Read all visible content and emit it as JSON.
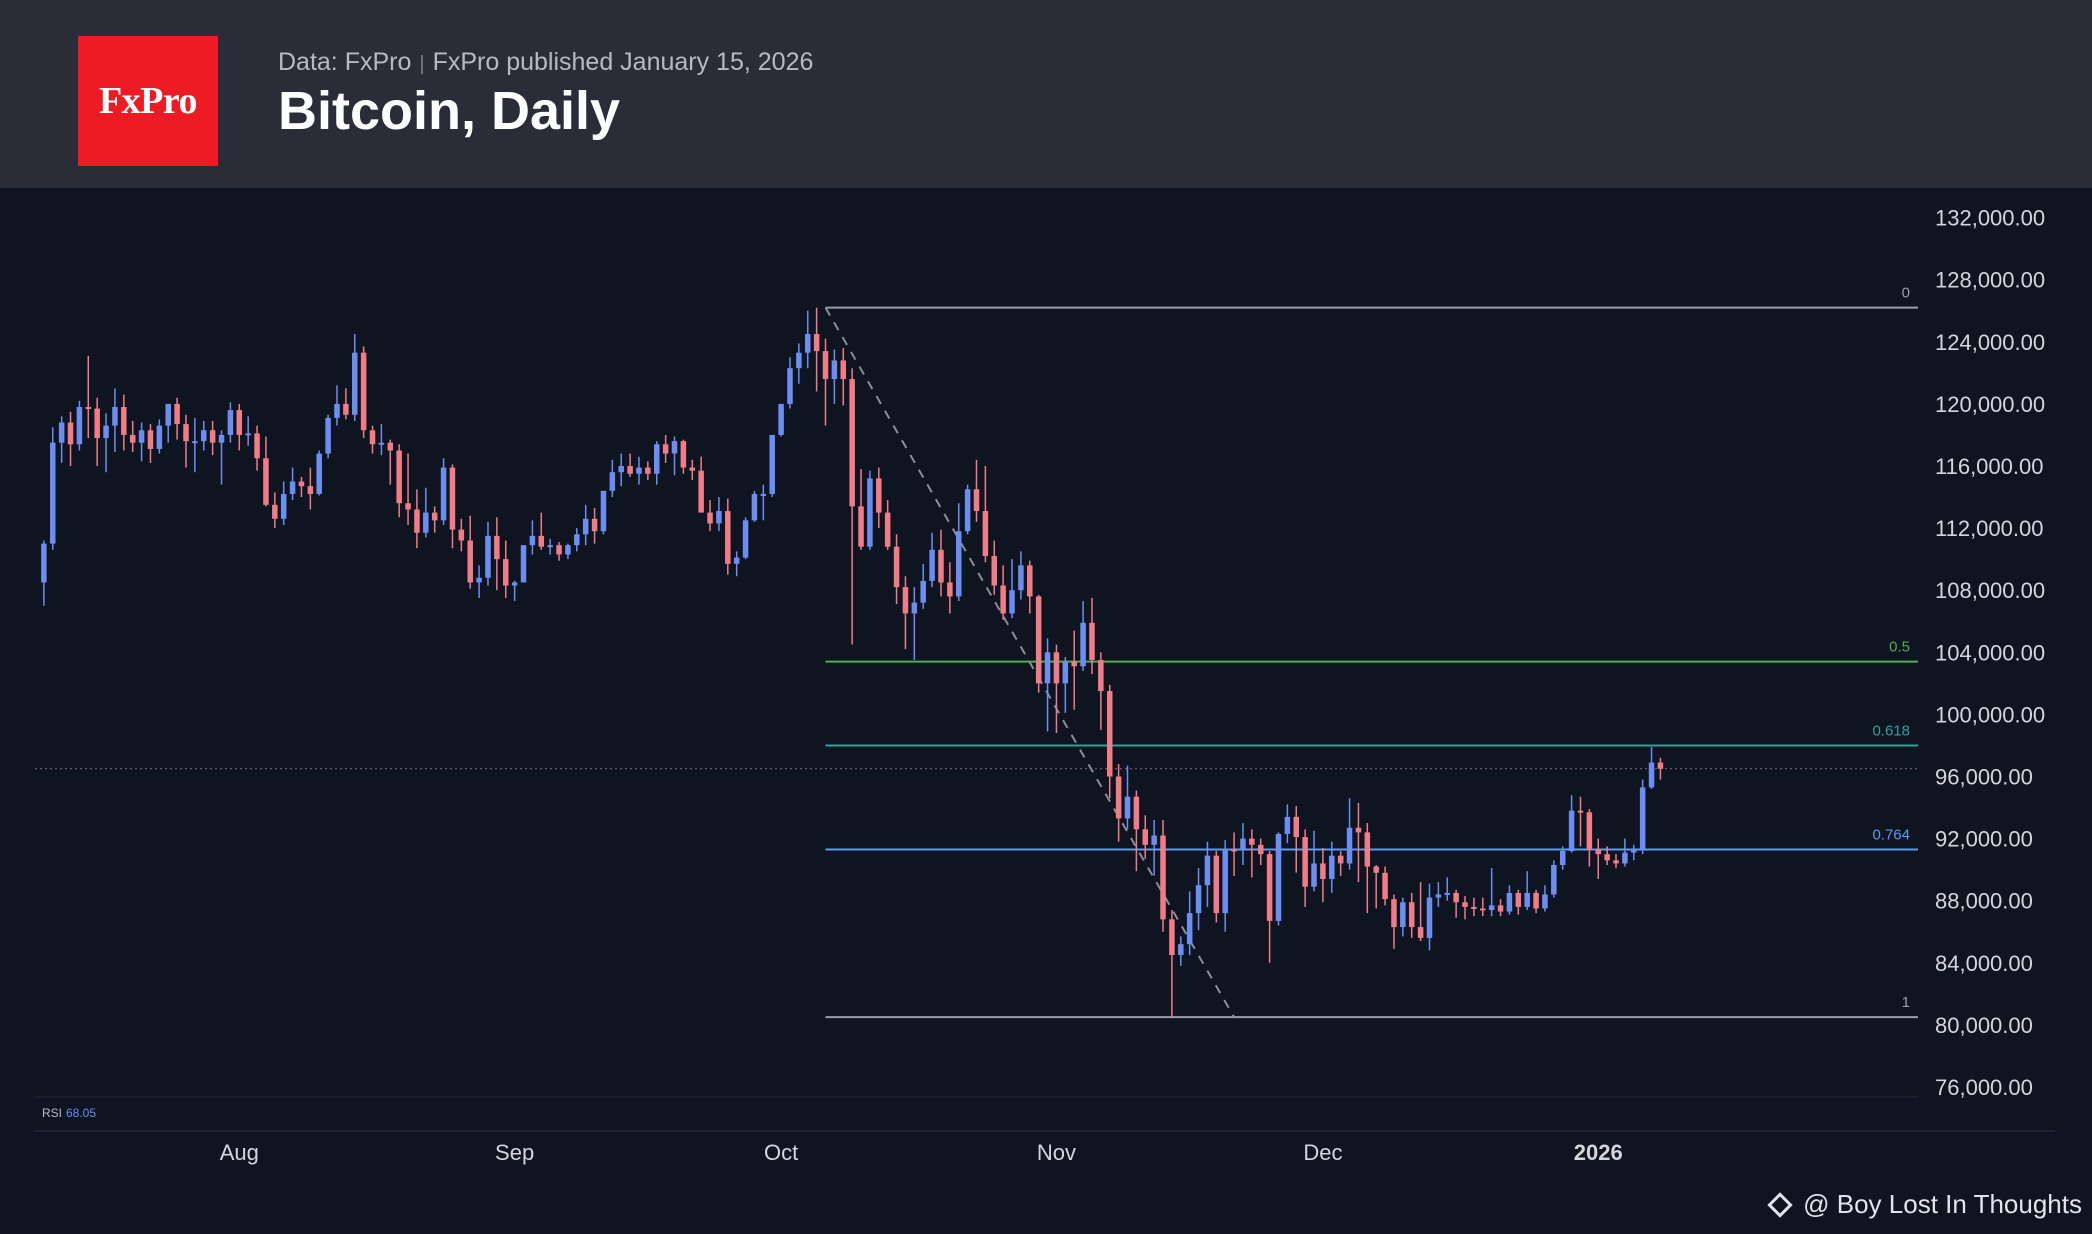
{
  "header": {
    "logo_text": "FxPro",
    "data_source": "Data: FxPro",
    "separator": "|",
    "published": "FxPro published January 15, 2026",
    "title": "Bitcoin, Daily"
  },
  "colors": {
    "background": "#0f1421",
    "header_bg": "#2a2d37",
    "logo_red": "#ee1b24",
    "up_candle": "#6b8ef0",
    "down_candle": "#f07c85",
    "fib_0": "#9a9ea8",
    "fib_0_5": "#4caf50",
    "fib_0_618": "#26a69a",
    "fib_0_764": "#5b9cf0",
    "fib_1": "#9a9ea8"
  },
  "watermark": {
    "icon": "binance-diamond-icon",
    "text": "@ Boy Lost In Thoughts"
  },
  "chart_data": {
    "type": "candlestick",
    "title": "Bitcoin, Daily",
    "y_ticks": [
      "132,000.00",
      "128,000.00",
      "124,000.00",
      "120,000.00",
      "116,000.00",
      "112,000.00",
      "108,000.00",
      "104,000.00",
      "100,000.00",
      "96,000.00",
      "92,000.00",
      "88,000.00",
      "84,000.00",
      "80,000.00",
      "76,000.00"
    ],
    "ylim": [
      76000,
      132000
    ],
    "x_ticks": [
      {
        "label": "Aug",
        "date": "2025-08-01"
      },
      {
        "label": "Sep",
        "date": "2025-09-01"
      },
      {
        "label": "Oct",
        "date": "2025-10-01"
      },
      {
        "label": "Nov",
        "date": "2025-11-01"
      },
      {
        "label": "Dec",
        "date": "2025-12-01"
      },
      {
        "label": "2026",
        "date": "2026-01-01",
        "bold": true
      }
    ],
    "xlim": [
      "2025-07-09",
      "2026-02-06"
    ],
    "grid": false,
    "current_price_line": 96500,
    "fib_retracement": {
      "start_date": "2025-10-06",
      "end_date": "2026-02-06",
      "levels": [
        {
          "label": "0",
          "value": 126200
        },
        {
          "label": "0.5",
          "value": 103400
        },
        {
          "label": "0.618",
          "value": 98000
        },
        {
          "label": "0.764",
          "value": 91300
        },
        {
          "label": "1",
          "value": 80500
        }
      ],
      "trend_line": [
        {
          "date": "2025-10-06",
          "value": 126200
        },
        {
          "date": "2025-11-21",
          "value": 80500
        }
      ]
    },
    "rsi": {
      "label": "RSI",
      "value": "68.05"
    },
    "candles_start_date": "2025-07-10",
    "candles_ohlc": [
      [
        108500,
        111200,
        107000,
        111000
      ],
      [
        111000,
        118500,
        110600,
        117500
      ],
      [
        117500,
        119200,
        116200,
        118800
      ],
      [
        118800,
        119500,
        116000,
        117400
      ],
      [
        117400,
        120200,
        117000,
        119800
      ],
      [
        119800,
        123100,
        117800,
        119700
      ],
      [
        119700,
        120400,
        116000,
        117800
      ],
      [
        117800,
        119400,
        115600,
        118600
      ],
      [
        118600,
        121000,
        116900,
        119800
      ],
      [
        119800,
        120600,
        117000,
        118000
      ],
      [
        118000,
        118900,
        116900,
        117500
      ],
      [
        117500,
        118800,
        116300,
        118300
      ],
      [
        118300,
        118700,
        116200,
        117100
      ],
      [
        117100,
        119000,
        116800,
        118600
      ],
      [
        118600,
        120000,
        117500,
        120000
      ],
      [
        120000,
        120400,
        117700,
        118700
      ],
      [
        118700,
        119300,
        115900,
        117600
      ],
      [
        117600,
        119100,
        115600,
        117600
      ],
      [
        117600,
        118900,
        117000,
        118300
      ],
      [
        118300,
        118900,
        116700,
        117500
      ],
      [
        117500,
        118300,
        114800,
        118000
      ],
      [
        118000,
        120100,
        117500,
        119600
      ],
      [
        119600,
        120000,
        117000,
        118000
      ],
      [
        118000,
        119200,
        117300,
        118100
      ],
      [
        118100,
        118600,
        115700,
        116500
      ],
      [
        116500,
        117900,
        113400,
        113500
      ],
      [
        113500,
        114300,
        112000,
        112600
      ],
      [
        112600,
        115000,
        112200,
        114200
      ],
      [
        114200,
        115900,
        113800,
        115000
      ],
      [
        115000,
        115300,
        114000,
        114700
      ],
      [
        114700,
        115900,
        113200,
        114200
      ],
      [
        114200,
        117000,
        114100,
        116800
      ],
      [
        116800,
        119300,
        116500,
        119100
      ],
      [
        119100,
        121200,
        118600,
        120000
      ],
      [
        120000,
        121000,
        119000,
        119300
      ],
      [
        119300,
        124500,
        118900,
        123300
      ],
      [
        123300,
        123700,
        117800,
        118300
      ],
      [
        118300,
        118600,
        116800,
        117400
      ],
      [
        117400,
        118700,
        116700,
        117500
      ],
      [
        117500,
        117700,
        114800,
        117000
      ],
      [
        117000,
        117400,
        112700,
        113600
      ],
      [
        113600,
        116800,
        112200,
        113200
      ],
      [
        113200,
        114500,
        110700,
        111700
      ],
      [
        111700,
        114600,
        111400,
        113000
      ],
      [
        113000,
        113400,
        111700,
        112500
      ],
      [
        112500,
        116500,
        112200,
        115900
      ],
      [
        115900,
        116100,
        110700,
        111900
      ],
      [
        111900,
        112600,
        110500,
        111200
      ],
      [
        111200,
        112800,
        108100,
        108500
      ],
      [
        108500,
        109600,
        107500,
        108800
      ],
      [
        108800,
        112400,
        108300,
        111500
      ],
      [
        111500,
        112700,
        108000,
        110000
      ],
      [
        110000,
        111200,
        107500,
        108300
      ],
      [
        108300,
        108600,
        107300,
        108500
      ],
      [
        108500,
        110900,
        108500,
        110900
      ],
      [
        110900,
        112500,
        110300,
        111500
      ],
      [
        111500,
        113000,
        110600,
        110800
      ],
      [
        110800,
        111300,
        110300,
        110900
      ],
      [
        110900,
        111100,
        109900,
        110300
      ],
      [
        110300,
        111000,
        110000,
        110900
      ],
      [
        110900,
        112000,
        110500,
        111600
      ],
      [
        111600,
        113500,
        110900,
        112600
      ],
      [
        112600,
        113300,
        111000,
        111800
      ],
      [
        111800,
        114400,
        111600,
        114400
      ],
      [
        114400,
        116400,
        114000,
        115600
      ],
      [
        115600,
        116800,
        114700,
        116000
      ],
      [
        116000,
        116800,
        115300,
        115500
      ],
      [
        115500,
        116600,
        114800,
        115900
      ],
      [
        115900,
        116300,
        115100,
        115500
      ],
      [
        115500,
        117600,
        114800,
        117400
      ],
      [
        117400,
        118000,
        116200,
        116800
      ],
      [
        116800,
        117900,
        115400,
        117600
      ],
      [
        117600,
        117700,
        115500,
        115900
      ],
      [
        115900,
        116400,
        115100,
        115700
      ],
      [
        115700,
        116600,
        113000,
        113000
      ],
      [
        113000,
        113800,
        111800,
        112300
      ],
      [
        112300,
        114000,
        111800,
        113100
      ],
      [
        113100,
        113900,
        109000,
        109700
      ],
      [
        109700,
        110500,
        108900,
        110100
      ],
      [
        110100,
        112700,
        110000,
        112500
      ],
      [
        112500,
        114400,
        112400,
        114200
      ],
      [
        114200,
        114800,
        112500,
        114200
      ],
      [
        114200,
        118000,
        114000,
        118000
      ],
      [
        118000,
        120000,
        117900,
        120000
      ],
      [
        120000,
        123000,
        119700,
        122300
      ],
      [
        122300,
        123900,
        121300,
        123300
      ],
      [
        123300,
        126000,
        122300,
        124500
      ],
      [
        124500,
        126200,
        120800,
        123400
      ],
      [
        123400,
        124200,
        118600,
        121600
      ],
      [
        121600,
        123500,
        120000,
        122800
      ],
      [
        122800,
        123600,
        119900,
        121600
      ],
      [
        121600,
        122300,
        104500,
        113400
      ],
      [
        113400,
        115800,
        110600,
        110800
      ],
      [
        110800,
        115700,
        110600,
        115200
      ],
      [
        115200,
        115900,
        112000,
        113000
      ],
      [
        113000,
        113800,
        110600,
        110800
      ],
      [
        110800,
        111600,
        107100,
        108200
      ],
      [
        108200,
        108900,
        104200,
        106500
      ],
      [
        106500,
        108200,
        103500,
        107200
      ],
      [
        107200,
        109700,
        106800,
        108600
      ],
      [
        108600,
        111700,
        108200,
        110600
      ],
      [
        110600,
        111900,
        107600,
        108500
      ],
      [
        108500,
        109800,
        106500,
        107600
      ],
      [
        107600,
        113600,
        107300,
        111800
      ],
      [
        111800,
        114800,
        111600,
        114500
      ],
      [
        114500,
        116400,
        112400,
        113100
      ],
      [
        113100,
        116000,
        109800,
        110200
      ],
      [
        110200,
        111200,
        107700,
        108300
      ],
      [
        108300,
        109600,
        106100,
        106500
      ],
      [
        106500,
        110000,
        106200,
        108000
      ],
      [
        108000,
        110500,
        107400,
        109600
      ],
      [
        109600,
        109900,
        106500,
        107600
      ],
      [
        107600,
        107700,
        101400,
        102000
      ],
      [
        102000,
        104900,
        98900,
        104000
      ],
      [
        104000,
        104500,
        98800,
        102000
      ],
      [
        102000,
        103700,
        100100,
        103400
      ],
      [
        103400,
        105400,
        100300,
        103100
      ],
      [
        103100,
        107300,
        102800,
        105900
      ],
      [
        105900,
        107500,
        102600,
        103500
      ],
      [
        103500,
        104000,
        99000,
        101500
      ],
      [
        101500,
        101900,
        94600,
        96000
      ],
      [
        96000,
        96800,
        91800,
        93300
      ],
      [
        93300,
        96700,
        92600,
        94700
      ],
      [
        94700,
        95100,
        89900,
        92600
      ],
      [
        92600,
        93500,
        90700,
        91600
      ],
      [
        91600,
        93200,
        89600,
        92200
      ],
      [
        92200,
        93200,
        86000,
        86800
      ],
      [
        86800,
        87400,
        80500,
        84500
      ],
      [
        84500,
        85700,
        83800,
        85200
      ],
      [
        85200,
        88600,
        84500,
        87200
      ],
      [
        87200,
        90100,
        86100,
        89000
      ],
      [
        89000,
        91800,
        87600,
        90900
      ],
      [
        90900,
        91200,
        86600,
        87200
      ],
      [
        87200,
        91900,
        86000,
        91300
      ],
      [
        91300,
        92400,
        89600,
        91200
      ],
      [
        91300,
        93000,
        90300,
        92000
      ],
      [
        92000,
        92600,
        89500,
        91600
      ],
      [
        91600,
        92000,
        90300,
        91000
      ],
      [
        91000,
        91200,
        84000,
        86700
      ],
      [
        86700,
        92400,
        86400,
        92300
      ],
      [
        92300,
        94200,
        91700,
        93400
      ],
      [
        93400,
        94100,
        89800,
        92100
      ],
      [
        92100,
        92600,
        87600,
        88900
      ],
      [
        88900,
        92500,
        88600,
        90400
      ],
      [
        90400,
        91400,
        87900,
        89400
      ],
      [
        89400,
        91800,
        88500,
        90900
      ],
      [
        90900,
        91200,
        89600,
        90400
      ],
      [
        90400,
        94600,
        90000,
        92700
      ],
      [
        92700,
        94300,
        89200,
        92400
      ],
      [
        92400,
        93000,
        87200,
        90200
      ],
      [
        90200,
        90300,
        87500,
        89800
      ],
      [
        89800,
        90200,
        87700,
        88100
      ],
      [
        88100,
        88400,
        84900,
        86300
      ],
      [
        86300,
        88200,
        85700,
        87900
      ],
      [
        87900,
        88500,
        85600,
        86300
      ],
      [
        86300,
        89200,
        85400,
        85600
      ],
      [
        85600,
        89100,
        84800,
        88200
      ],
      [
        88200,
        89200,
        87600,
        88400
      ],
      [
        88400,
        89500,
        88000,
        88500
      ],
      [
        88500,
        88700,
        86900,
        87900
      ],
      [
        87900,
        88300,
        86800,
        87600
      ],
      [
        87600,
        88200,
        87000,
        87500
      ],
      [
        87500,
        88200,
        87000,
        87400
      ],
      [
        87400,
        90100,
        87000,
        87700
      ],
      [
        87700,
        88100,
        87000,
        87300
      ],
      [
        87300,
        89000,
        87100,
        88500
      ],
      [
        88500,
        88700,
        87100,
        87600
      ],
      [
        87600,
        89900,
        87400,
        88500
      ],
      [
        88500,
        88700,
        87200,
        87500
      ],
      [
        87500,
        89000,
        87300,
        88400
      ],
      [
        88400,
        90600,
        88200,
        90300
      ],
      [
        90300,
        91500,
        90000,
        91200
      ],
      [
        91200,
        94800,
        91100,
        93800
      ],
      [
        93800,
        94700,
        91500,
        93700
      ],
      [
        93700,
        93900,
        90200,
        91300
      ],
      [
        91300,
        92000,
        89400,
        91000
      ],
      [
        91000,
        91500,
        90300,
        90600
      ],
      [
        90600,
        91000,
        90100,
        90400
      ],
      [
        90400,
        92000,
        90200,
        91100
      ],
      [
        91100,
        91600,
        90600,
        91300
      ],
      [
        91300,
        95800,
        91000,
        95300
      ],
      [
        95300,
        97900,
        95200,
        96900
      ],
      [
        96900,
        97200,
        95800,
        96500
      ]
    ]
  }
}
